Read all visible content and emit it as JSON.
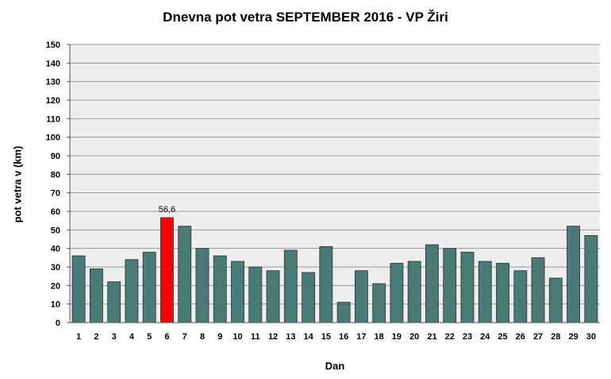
{
  "chart_data": {
    "type": "bar",
    "title": "Dnevna pot vetra SEPTEMBER 2016 - VP Žiri",
    "xlabel": "Dan",
    "ylabel": "pot vetra  v (km)",
    "ylim": [
      0,
      150
    ],
    "ytick_step": 10,
    "grid": true,
    "categories": [
      "1",
      "2",
      "3",
      "4",
      "5",
      "6",
      "7",
      "8",
      "9",
      "10",
      "11",
      "12",
      "13",
      "14",
      "15",
      "16",
      "17",
      "18",
      "19",
      "20",
      "21",
      "22",
      "23",
      "24",
      "25",
      "26",
      "27",
      "28",
      "29",
      "30"
    ],
    "values": [
      36,
      29,
      22,
      34,
      38,
      56.6,
      52,
      40,
      36,
      33,
      30,
      28,
      39,
      27,
      41,
      11,
      28,
      21,
      32,
      33,
      42,
      40,
      38,
      33,
      32,
      28,
      35,
      24,
      52,
      47
    ],
    "highlight_index": 5,
    "highlight_label": "56,6",
    "colors": {
      "bar": "#4a7a76",
      "highlight": "#ff0000",
      "plot_background": "#eeeeee",
      "grid": "#9a9a9a"
    }
  }
}
